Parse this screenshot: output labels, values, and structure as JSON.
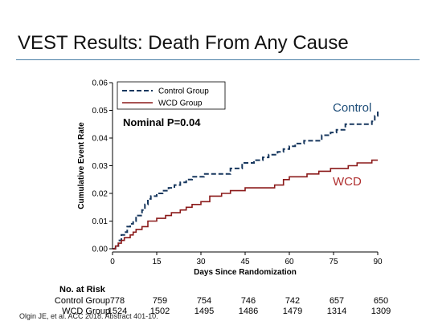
{
  "slide": {
    "title": "VEST Results: Death From Any Cause",
    "citation": "Olgin JE, et al. ACC 2018. Abstract 401-10."
  },
  "chart_data": {
    "type": "line",
    "xlabel": "Days Since Randomization",
    "ylabel": "Cumulative Event Rate",
    "xlim": [
      0,
      90
    ],
    "ylim": [
      0,
      0.06
    ],
    "xticks": [
      0,
      15,
      30,
      45,
      60,
      75,
      90
    ],
    "yticks": [
      0.0,
      0.01,
      0.02,
      0.03,
      0.04,
      0.05,
      0.06
    ],
    "ytick_labels": [
      "0.00",
      "0.01",
      "0.02",
      "0.03",
      "0.04",
      "0.05",
      "0.06"
    ],
    "legend": {
      "placement": "top-left"
    },
    "annotation": "Nominal P=0.04",
    "series": [
      {
        "name": "Control Group",
        "end_label": "Control",
        "color": "#17375e",
        "style": "dashed",
        "x": [
          0,
          1,
          2,
          3,
          4,
          5,
          6,
          7,
          8,
          10,
          11,
          12,
          13,
          15,
          17,
          19,
          21,
          23,
          25,
          27,
          29,
          31,
          33,
          36,
          40,
          44,
          46,
          48,
          51,
          53,
          56,
          58,
          60,
          62,
          65,
          71,
          74,
          76,
          79,
          83,
          88,
          89,
          90
        ],
        "y": [
          0.0,
          0.001,
          0.003,
          0.005,
          0.006,
          0.008,
          0.009,
          0.01,
          0.012,
          0.014,
          0.016,
          0.018,
          0.019,
          0.02,
          0.021,
          0.022,
          0.023,
          0.024,
          0.025,
          0.026,
          0.026,
          0.027,
          0.027,
          0.027,
          0.029,
          0.031,
          0.031,
          0.032,
          0.033,
          0.034,
          0.035,
          0.036,
          0.037,
          0.038,
          0.039,
          0.041,
          0.042,
          0.043,
          0.045,
          0.045,
          0.046,
          0.048,
          0.05
        ]
      },
      {
        "name": "WCD Group",
        "end_label": "WCD",
        "color": "#8b1a1a",
        "style": "solid",
        "x": [
          0,
          1,
          2,
          3,
          4,
          6,
          7,
          8,
          10,
          12,
          15,
          18,
          20,
          23,
          25,
          27,
          30,
          33,
          37,
          40,
          45,
          50,
          55,
          58,
          60,
          66,
          70,
          74,
          80,
          83,
          86,
          88,
          90
        ],
        "y": [
          0.0,
          0.001,
          0.002,
          0.003,
          0.004,
          0.005,
          0.006,
          0.007,
          0.008,
          0.01,
          0.011,
          0.012,
          0.013,
          0.014,
          0.015,
          0.016,
          0.017,
          0.019,
          0.02,
          0.021,
          0.022,
          0.022,
          0.023,
          0.025,
          0.026,
          0.027,
          0.028,
          0.029,
          0.03,
          0.031,
          0.031,
          0.032,
          0.032
        ]
      }
    ]
  },
  "risk_table": {
    "title": "No. at Risk",
    "rows": [
      {
        "label": "Control Group",
        "values": [
          "778",
          "759",
          "754",
          "746",
          "742",
          "657",
          "650"
        ]
      },
      {
        "label": "WCD Group",
        "values": [
          "1524",
          "1502",
          "1495",
          "1486",
          "1479",
          "1314",
          "1309"
        ]
      }
    ]
  }
}
